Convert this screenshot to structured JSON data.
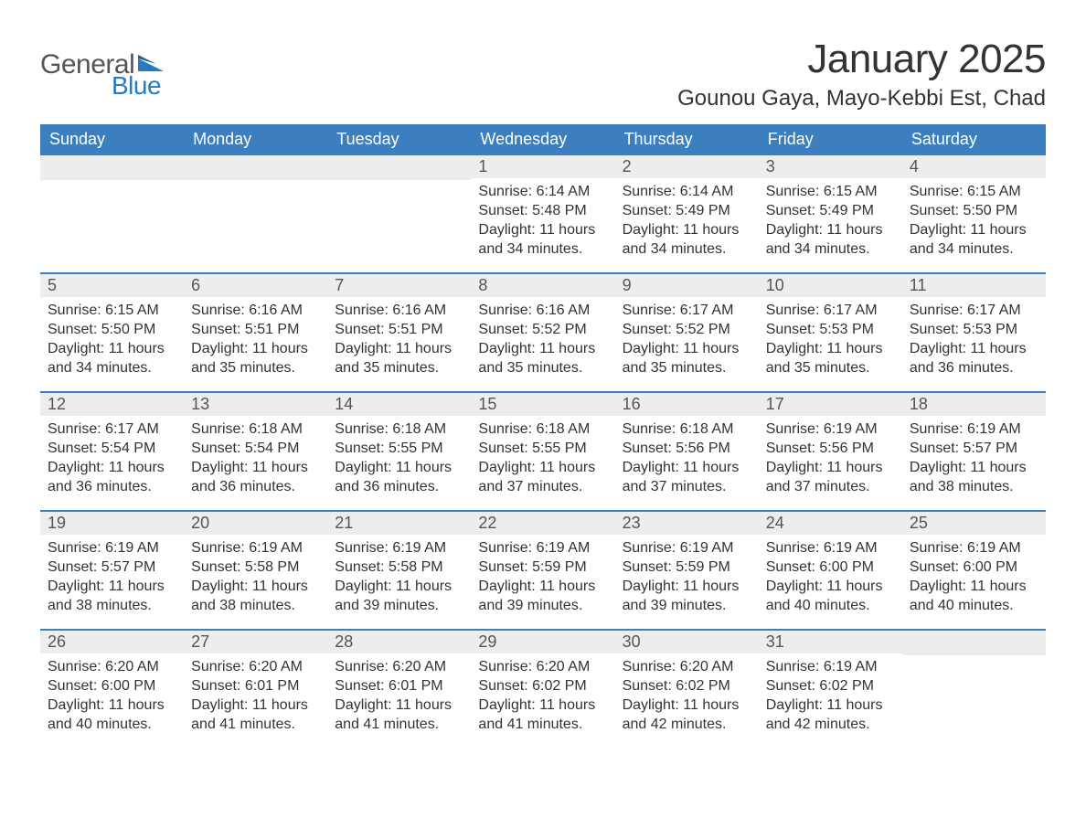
{
  "brand": {
    "general": "General",
    "blue": "Blue",
    "accent_color": "#2a7ac0"
  },
  "title": "January 2025",
  "location": "Gounou Gaya, Mayo-Kebbi Est, Chad",
  "colors": {
    "header_bg": "#3b7fbf",
    "header_text": "#ffffff",
    "daynum_bg": "#ededed",
    "daynum_text": "#555555",
    "body_text": "#333333",
    "week_border": "#3b7fbf",
    "page_bg": "#ffffff"
  },
  "dow": [
    "Sunday",
    "Monday",
    "Tuesday",
    "Wednesday",
    "Thursday",
    "Friday",
    "Saturday"
  ],
  "weeks": [
    [
      {
        "blank": true
      },
      {
        "blank": true
      },
      {
        "blank": true
      },
      {
        "n": "1",
        "sr": "Sunrise: 6:14 AM",
        "ss": "Sunset: 5:48 PM",
        "d1": "Daylight: 11 hours",
        "d2": "and 34 minutes."
      },
      {
        "n": "2",
        "sr": "Sunrise: 6:14 AM",
        "ss": "Sunset: 5:49 PM",
        "d1": "Daylight: 11 hours",
        "d2": "and 34 minutes."
      },
      {
        "n": "3",
        "sr": "Sunrise: 6:15 AM",
        "ss": "Sunset: 5:49 PM",
        "d1": "Daylight: 11 hours",
        "d2": "and 34 minutes."
      },
      {
        "n": "4",
        "sr": "Sunrise: 6:15 AM",
        "ss": "Sunset: 5:50 PM",
        "d1": "Daylight: 11 hours",
        "d2": "and 34 minutes."
      }
    ],
    [
      {
        "n": "5",
        "sr": "Sunrise: 6:15 AM",
        "ss": "Sunset: 5:50 PM",
        "d1": "Daylight: 11 hours",
        "d2": "and 34 minutes."
      },
      {
        "n": "6",
        "sr": "Sunrise: 6:16 AM",
        "ss": "Sunset: 5:51 PM",
        "d1": "Daylight: 11 hours",
        "d2": "and 35 minutes."
      },
      {
        "n": "7",
        "sr": "Sunrise: 6:16 AM",
        "ss": "Sunset: 5:51 PM",
        "d1": "Daylight: 11 hours",
        "d2": "and 35 minutes."
      },
      {
        "n": "8",
        "sr": "Sunrise: 6:16 AM",
        "ss": "Sunset: 5:52 PM",
        "d1": "Daylight: 11 hours",
        "d2": "and 35 minutes."
      },
      {
        "n": "9",
        "sr": "Sunrise: 6:17 AM",
        "ss": "Sunset: 5:52 PM",
        "d1": "Daylight: 11 hours",
        "d2": "and 35 minutes."
      },
      {
        "n": "10",
        "sr": "Sunrise: 6:17 AM",
        "ss": "Sunset: 5:53 PM",
        "d1": "Daylight: 11 hours",
        "d2": "and 35 minutes."
      },
      {
        "n": "11",
        "sr": "Sunrise: 6:17 AM",
        "ss": "Sunset: 5:53 PM",
        "d1": "Daylight: 11 hours",
        "d2": "and 36 minutes."
      }
    ],
    [
      {
        "n": "12",
        "sr": "Sunrise: 6:17 AM",
        "ss": "Sunset: 5:54 PM",
        "d1": "Daylight: 11 hours",
        "d2": "and 36 minutes."
      },
      {
        "n": "13",
        "sr": "Sunrise: 6:18 AM",
        "ss": "Sunset: 5:54 PM",
        "d1": "Daylight: 11 hours",
        "d2": "and 36 minutes."
      },
      {
        "n": "14",
        "sr": "Sunrise: 6:18 AM",
        "ss": "Sunset: 5:55 PM",
        "d1": "Daylight: 11 hours",
        "d2": "and 36 minutes."
      },
      {
        "n": "15",
        "sr": "Sunrise: 6:18 AM",
        "ss": "Sunset: 5:55 PM",
        "d1": "Daylight: 11 hours",
        "d2": "and 37 minutes."
      },
      {
        "n": "16",
        "sr": "Sunrise: 6:18 AM",
        "ss": "Sunset: 5:56 PM",
        "d1": "Daylight: 11 hours",
        "d2": "and 37 minutes."
      },
      {
        "n": "17",
        "sr": "Sunrise: 6:19 AM",
        "ss": "Sunset: 5:56 PM",
        "d1": "Daylight: 11 hours",
        "d2": "and 37 minutes."
      },
      {
        "n": "18",
        "sr": "Sunrise: 6:19 AM",
        "ss": "Sunset: 5:57 PM",
        "d1": "Daylight: 11 hours",
        "d2": "and 38 minutes."
      }
    ],
    [
      {
        "n": "19",
        "sr": "Sunrise: 6:19 AM",
        "ss": "Sunset: 5:57 PM",
        "d1": "Daylight: 11 hours",
        "d2": "and 38 minutes."
      },
      {
        "n": "20",
        "sr": "Sunrise: 6:19 AM",
        "ss": "Sunset: 5:58 PM",
        "d1": "Daylight: 11 hours",
        "d2": "and 38 minutes."
      },
      {
        "n": "21",
        "sr": "Sunrise: 6:19 AM",
        "ss": "Sunset: 5:58 PM",
        "d1": "Daylight: 11 hours",
        "d2": "and 39 minutes."
      },
      {
        "n": "22",
        "sr": "Sunrise: 6:19 AM",
        "ss": "Sunset: 5:59 PM",
        "d1": "Daylight: 11 hours",
        "d2": "and 39 minutes."
      },
      {
        "n": "23",
        "sr": "Sunrise: 6:19 AM",
        "ss": "Sunset: 5:59 PM",
        "d1": "Daylight: 11 hours",
        "d2": "and 39 minutes."
      },
      {
        "n": "24",
        "sr": "Sunrise: 6:19 AM",
        "ss": "Sunset: 6:00 PM",
        "d1": "Daylight: 11 hours",
        "d2": "and 40 minutes."
      },
      {
        "n": "25",
        "sr": "Sunrise: 6:19 AM",
        "ss": "Sunset: 6:00 PM",
        "d1": "Daylight: 11 hours",
        "d2": "and 40 minutes."
      }
    ],
    [
      {
        "n": "26",
        "sr": "Sunrise: 6:20 AM",
        "ss": "Sunset: 6:00 PM",
        "d1": "Daylight: 11 hours",
        "d2": "and 40 minutes."
      },
      {
        "n": "27",
        "sr": "Sunrise: 6:20 AM",
        "ss": "Sunset: 6:01 PM",
        "d1": "Daylight: 11 hours",
        "d2": "and 41 minutes."
      },
      {
        "n": "28",
        "sr": "Sunrise: 6:20 AM",
        "ss": "Sunset: 6:01 PM",
        "d1": "Daylight: 11 hours",
        "d2": "and 41 minutes."
      },
      {
        "n": "29",
        "sr": "Sunrise: 6:20 AM",
        "ss": "Sunset: 6:02 PM",
        "d1": "Daylight: 11 hours",
        "d2": "and 41 minutes."
      },
      {
        "n": "30",
        "sr": "Sunrise: 6:20 AM",
        "ss": "Sunset: 6:02 PM",
        "d1": "Daylight: 11 hours",
        "d2": "and 42 minutes."
      },
      {
        "n": "31",
        "sr": "Sunrise: 6:19 AM",
        "ss": "Sunset: 6:02 PM",
        "d1": "Daylight: 11 hours",
        "d2": "and 42 minutes."
      },
      {
        "blank": true
      }
    ]
  ]
}
